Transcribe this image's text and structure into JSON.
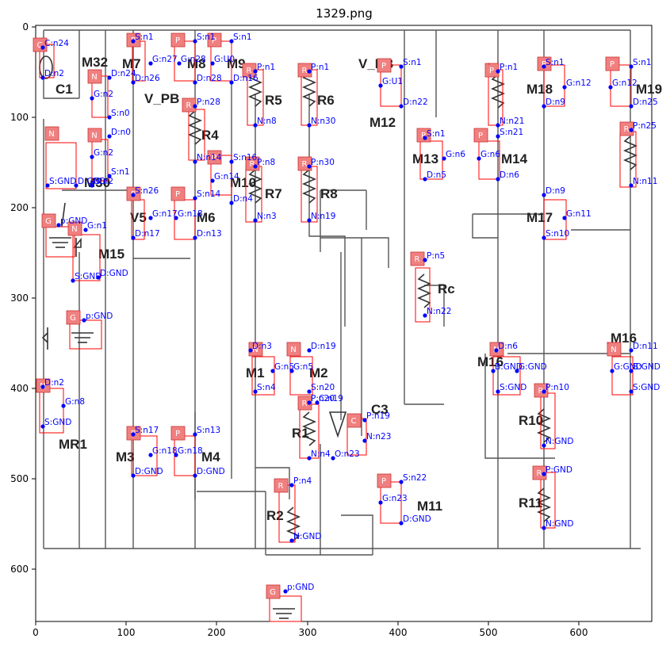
{
  "title": "1329.png",
  "axes": {
    "xticks": [
      "0",
      "100",
      "200",
      "300",
      "400",
      "500",
      "600"
    ],
    "yticks": [
      "0",
      "100",
      "200",
      "300",
      "400",
      "500",
      "600"
    ]
  },
  "component_names": [
    "C1",
    "M32",
    "M7",
    "M8",
    "M9",
    "V_PB",
    "R5",
    "R6",
    "V_PB",
    "M12",
    "R4",
    "M30",
    "M10",
    "R7",
    "R8",
    "M13",
    "M14",
    "M18",
    "M19",
    "M15",
    "V5",
    "M6",
    "M17",
    "Rc",
    "M1",
    "M2",
    "C3",
    "R1",
    "M3",
    "M4",
    "R2",
    "M11",
    "MR1",
    "M16",
    "R10",
    "R11",
    "M16"
  ],
  "badges": [
    {
      "id": "b1",
      "t": "C"
    },
    {
      "id": "b2",
      "t": "N"
    },
    {
      "id": "b3",
      "t": "P"
    },
    {
      "id": "b4",
      "t": "P"
    },
    {
      "id": "b5",
      "t": "P"
    },
    {
      "id": "b6",
      "t": "R"
    },
    {
      "id": "b7",
      "t": "R"
    },
    {
      "id": "b8",
      "t": "P"
    },
    {
      "id": "b9",
      "t": "R"
    },
    {
      "id": "b10",
      "t": "P"
    },
    {
      "id": "b11",
      "t": "P"
    },
    {
      "id": "b12",
      "t": "N"
    },
    {
      "id": "b13",
      "t": "N"
    },
    {
      "id": "b14",
      "t": "R"
    },
    {
      "id": "b15",
      "t": "P"
    },
    {
      "id": "b16",
      "t": "R"
    },
    {
      "id": "b17",
      "t": "R"
    },
    {
      "id": "b18",
      "t": "P"
    },
    {
      "id": "b19",
      "t": "P"
    },
    {
      "id": "b20",
      "t": "P"
    },
    {
      "id": "b21",
      "t": "R"
    },
    {
      "id": "b22",
      "t": "P"
    },
    {
      "id": "b23",
      "t": "P"
    },
    {
      "id": "b24",
      "t": "G"
    },
    {
      "id": "b25",
      "t": "N"
    },
    {
      "id": "b26",
      "t": "R"
    },
    {
      "id": "b27",
      "t": "G"
    },
    {
      "id": "b28",
      "t": "N"
    },
    {
      "id": "b29",
      "t": "N"
    },
    {
      "id": "b30",
      "t": "N"
    },
    {
      "id": "b31",
      "t": "N"
    },
    {
      "id": "b32",
      "t": "N"
    },
    {
      "id": "b33",
      "t": "R"
    },
    {
      "id": "b34",
      "t": "C"
    },
    {
      "id": "b35",
      "t": "R"
    },
    {
      "id": "b36",
      "t": "P"
    },
    {
      "id": "b37",
      "t": "P"
    },
    {
      "id": "b38",
      "t": "R"
    },
    {
      "id": "b39",
      "t": "P"
    },
    {
      "id": "b40",
      "t": "R"
    },
    {
      "id": "b41",
      "t": "G"
    },
    {
      "id": "b42",
      "t": "N"
    }
  ],
  "labels": [
    "C:n24",
    "D:n2",
    "D:n24",
    "G:n2",
    "S:n0",
    "D:n0",
    "G:n2",
    "S:n1",
    "G:n2",
    "S:GND",
    "D:GND",
    "S:n1",
    "G:n27",
    "S:n1",
    "G:n28",
    "S:n1",
    "G:U0",
    "D:n26",
    "D:n28",
    "D:n16",
    "P:n1",
    "N:n8",
    "P:n1",
    "N:n30",
    "P:n28",
    "N:n14",
    "S:n16",
    "G:n14",
    "D:n4",
    "P:n8",
    "N:n3",
    "P:n30",
    "N:n19",
    "S:n1",
    "G:U1",
    "D:n22",
    "S:n1",
    "G:n6",
    "D:n5",
    "P:n1",
    "N:n21",
    "S:n21",
    "G:n6",
    "D:n6",
    "S:n1",
    "G:n12",
    "D:n9",
    "S:n1",
    "G:n12",
    "D:n25",
    "P:n25",
    "N:n11",
    "S:n26",
    "G:n17",
    "D:n17",
    "S:n14",
    "G:n18",
    "D:n13",
    "D:n9",
    "G:n11",
    "S:n10",
    "p:GND",
    "G:n1",
    "S:GND",
    "D:GND",
    "p:GND",
    "P:n5",
    "N:n22",
    "D:n3",
    "G:n5",
    "S:n4",
    "D:n19",
    "G:n5",
    "S:n20",
    "P:n20",
    "N:n4",
    "P:n19",
    "N:n23",
    "O:n23",
    "C:n19",
    "D:n6",
    "B:GND",
    "G:GND",
    "S:GND",
    "P:n10",
    "N:GND",
    "D:n11",
    "G:GND",
    "B:GND",
    "S:GND",
    "D:n2",
    "G:n8",
    "S:GND",
    "S:n17",
    "G:n18",
    "D:GND",
    "S:n13",
    "G:n18",
    "D:GND",
    "P:n4",
    "N:GND",
    "S:n22",
    "G:n23",
    "D:GND",
    "P:GND",
    "N:GND",
    "p:GND"
  ]
}
